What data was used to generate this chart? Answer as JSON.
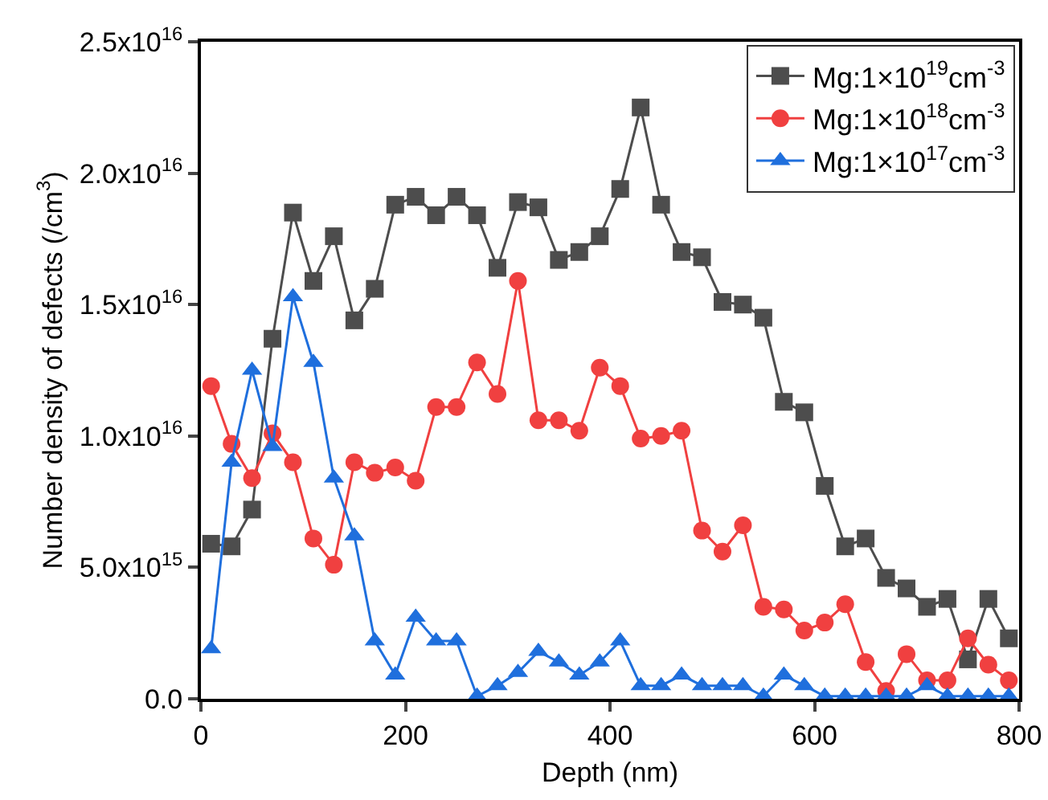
{
  "chart_data": {
    "type": "line",
    "xlabel": "Depth (nm)",
    "ylabel": "Number density of defects (/cm$^{3}$)",
    "x": [
      10,
      30,
      50,
      70,
      90,
      110,
      130,
      150,
      170,
      190,
      210,
      230,
      250,
      270,
      290,
      310,
      330,
      350,
      370,
      390,
      410,
      430,
      450,
      470,
      490,
      510,
      530,
      550,
      570,
      590,
      610,
      630,
      650,
      670,
      690,
      710,
      730,
      750,
      770,
      790
    ],
    "series": [
      {
        "name": "Mg:1×10$^{19}$cm$^{-3}$",
        "color": "#4d4d4d",
        "marker": "square",
        "values": [
          5900000000000000.0,
          5800000000000000.0,
          7200000000000000.0,
          1.37e+16,
          1.85e+16,
          1.59e+16,
          1.76e+16,
          1.44e+16,
          1.56e+16,
          1.88e+16,
          1.91e+16,
          1.84e+16,
          1.91e+16,
          1.84e+16,
          1.64e+16,
          1.89e+16,
          1.87e+16,
          1.67e+16,
          1.7e+16,
          1.76e+16,
          1.94e+16,
          2.25e+16,
          1.88e+16,
          1.7e+16,
          1.68e+16,
          1.51e+16,
          1.5e+16,
          1.45e+16,
          1.13e+16,
          1.09e+16,
          8100000000000000.0,
          5800000000000000.0,
          6100000000000000.0,
          4600000000000000.0,
          4200000000000000.0,
          3500000000000000.0,
          3800000000000000.0,
          1500000000000000.0,
          3800000000000000.0,
          2300000000000000.0
        ]
      },
      {
        "name": "Mg:1×10$^{18}$cm$^{-3}$",
        "color": "#f04040",
        "marker": "circle",
        "values": [
          1.19e+16,
          9700000000000000.0,
          8400000000000000.0,
          1.01e+16,
          9000000000000000.0,
          6100000000000000.0,
          5100000000000000.0,
          9000000000000000.0,
          8600000000000000.0,
          8800000000000000.0,
          8300000000000000.0,
          1.11e+16,
          1.11e+16,
          1.28e+16,
          1.16e+16,
          1.59e+16,
          1.06e+16,
          1.06e+16,
          1.02e+16,
          1.26e+16,
          1.19e+16,
          9900000000000000.0,
          1e+16,
          1.02e+16,
          6400000000000000.0,
          5600000000000000.0,
          6600000000000000.0,
          3500000000000000.0,
          3400000000000000.0,
          2600000000000000.0,
          2900000000000000.0,
          3600000000000000.0,
          1400000000000000.0,
          300000000000000.0,
          1700000000000000.0,
          700000000000000.0,
          700000000000000.0,
          2300000000000000.0,
          1300000000000000.0,
          700000000000000.0
        ]
      },
      {
        "name": "Mg:1×10$^{17}$cm$^{-3}$",
        "color": "#1f6fdd",
        "marker": "triangle",
        "values": [
          1900000000000000.0,
          9000000000000000.0,
          1.25e+16,
          9600000000000000.0,
          1.53e+16,
          1.28e+16,
          8400000000000000.0,
          6200000000000000.0,
          2200000000000000.0,
          900000000000000.0,
          3100000000000000.0,
          2200000000000000.0,
          2200000000000000.0,
          100000000000000.0,
          500000000000000.0,
          1000000000000000.0,
          1800000000000000.0,
          1400000000000000.0,
          900000000000000.0,
          1400000000000000.0,
          2200000000000000.0,
          500000000000000.0,
          500000000000000.0,
          900000000000000.0,
          500000000000000.0,
          500000000000000.0,
          500000000000000.0,
          100000000000000.0,
          900000000000000.0,
          500000000000000.0,
          100000000000000.0,
          100000000000000.0,
          100000000000000.0,
          100000000000000.0,
          100000000000000.0,
          500000000000000.0,
          100000000000000.0,
          100000000000000.0,
          100000000000000.0,
          100000000000000.0
        ]
      }
    ],
    "xlim": [
      0,
      800
    ],
    "xticks": [
      0,
      200,
      400,
      600,
      800
    ],
    "ylim": [
      0,
      2.5e+16
    ],
    "yticks": [
      {
        "value": 0,
        "label": "0.0"
      },
      {
        "value": 5000000000000000.0,
        "label": "5.0x10$^{15}$"
      },
      {
        "value": 1e+16,
        "label": "1.0x10$^{16}$"
      },
      {
        "value": 1.5e+16,
        "label": "1.5x10$^{16}$"
      },
      {
        "value": 2e+16,
        "label": "2.0x10$^{16}$"
      },
      {
        "value": 2.5e+16,
        "label": "2.5x10$^{16}$"
      }
    ],
    "grid": false,
    "legend": "top right",
    "line_style": "solid"
  }
}
